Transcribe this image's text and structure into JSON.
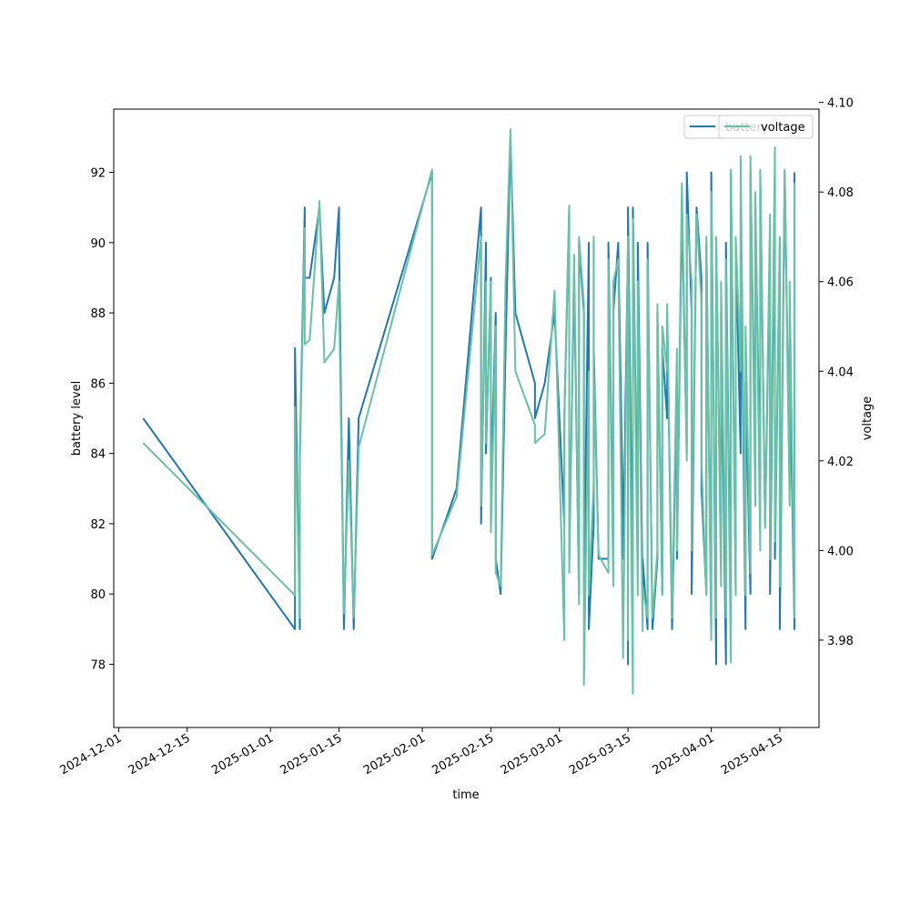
{
  "chart_data": {
    "type": "line",
    "xlabel": "time",
    "ylabel": "battery level",
    "y2label": "voltage",
    "x_range": [
      "2024-11-30",
      "2025-04-23"
    ],
    "ylim": [
      76.2,
      93.8
    ],
    "y2lim": [
      3.9605,
      4.0985
    ],
    "x_ticks": [
      "2024-12-01",
      "2024-12-15",
      "2025-01-01",
      "2025-01-15",
      "2025-02-01",
      "2025-02-15",
      "2025-03-01",
      "2025-03-15",
      "2025-04-01",
      "2025-04-15"
    ],
    "y_ticks": [
      78,
      80,
      82,
      84,
      86,
      88,
      90,
      92
    ],
    "y2_ticks": [
      "3.98",
      "4.00",
      "4.02",
      "4.04",
      "4.06",
      "4.08",
      "4.10"
    ],
    "grid": false,
    "legend_placement": "top-right",
    "series": [
      {
        "name": "battery",
        "axis": "left",
        "color": "#1f77b4",
        "x": [
          "2024-12-06",
          "2025-01-06",
          "2025-01-06",
          "2025-01-07",
          "2025-01-07",
          "2025-01-08",
          "2025-01-08",
          "2025-01-09",
          "2025-01-11",
          "2025-01-12",
          "2025-01-14",
          "2025-01-15",
          "2025-01-15",
          "2025-01-16",
          "2025-01-17",
          "2025-01-18",
          "2025-01-19",
          "2025-01-19",
          "2025-02-03",
          "2025-02-03",
          "2025-02-08",
          "2025-02-13",
          "2025-02-13",
          "2025-02-14",
          "2025-02-14",
          "2025-02-15",
          "2025-02-15",
          "2025-02-16",
          "2025-02-16",
          "2025-02-17",
          "2025-02-18",
          "2025-02-19",
          "2025-02-20",
          "2025-02-24",
          "2025-02-24",
          "2025-02-26",
          "2025-02-28",
          "2025-03-02",
          "2025-03-02",
          "2025-03-03",
          "2025-03-03",
          "2025-03-04",
          "2025-03-05",
          "2025-03-05",
          "2025-03-06",
          "2025-03-06",
          "2025-03-07",
          "2025-03-07",
          "2025-03-08",
          "2025-03-08",
          "2025-03-08",
          "2025-03-09",
          "2025-03-11",
          "2025-03-11",
          "2025-03-12",
          "2025-03-12",
          "2025-03-13",
          "2025-03-14",
          "2025-03-14",
          "2025-03-15",
          "2025-03-15",
          "2025-03-15",
          "2025-03-16",
          "2025-03-16",
          "2025-03-17",
          "2025-03-17",
          "2025-03-18",
          "2025-03-18",
          "2025-03-19",
          "2025-03-19",
          "2025-03-20",
          "2025-03-21",
          "2025-03-21",
          "2025-03-22",
          "2025-03-22",
          "2025-03-23",
          "2025-03-23",
          "2025-03-24",
          "2025-03-25",
          "2025-03-25",
          "2025-03-26",
          "2025-03-27",
          "2025-03-27",
          "2025-03-28",
          "2025-03-28",
          "2025-03-29",
          "2025-03-30",
          "2025-03-30",
          "2025-03-31",
          "2025-03-31",
          "2025-04-01",
          "2025-04-01",
          "2025-04-02",
          "2025-04-02",
          "2025-04-03",
          "2025-04-03",
          "2025-04-04",
          "2025-04-04",
          "2025-04-05",
          "2025-04-05",
          "2025-04-06",
          "2025-04-06",
          "2025-04-07",
          "2025-04-07",
          "2025-04-08",
          "2025-04-08",
          "2025-04-09",
          "2025-04-09",
          "2025-04-10",
          "2025-04-10",
          "2025-04-11",
          "2025-04-11",
          "2025-04-12",
          "2025-04-13",
          "2025-04-13",
          "2025-04-14",
          "2025-04-14",
          "2025-04-15",
          "2025-04-15",
          "2025-04-16",
          "2025-04-17",
          "2025-04-17",
          "2025-04-18",
          "2025-04-18"
        ],
        "y": [
          85,
          79,
          87,
          79,
          84,
          91,
          89,
          89,
          91,
          88,
          89,
          91,
          90,
          79,
          85,
          79,
          85,
          85,
          92,
          81,
          83,
          91,
          82,
          90,
          84,
          89,
          83,
          88,
          81,
          80,
          87,
          93,
          88,
          86,
          85,
          86,
          88,
          82,
          85,
          91,
          81,
          89,
          80,
          90,
          88,
          80,
          90,
          79,
          82,
          90,
          87,
          81,
          81,
          90,
          81,
          88,
          90,
          82,
          81,
          90,
          78,
          91,
          80,
          91,
          81,
          90,
          80,
          81,
          79,
          90,
          79,
          81,
          88,
          80,
          87,
          85,
          88,
          79,
          86,
          81,
          91,
          84,
          92,
          88,
          80,
          91,
          89,
          83,
          80,
          90,
          79,
          92,
          78,
          90,
          81,
          88,
          78,
          90,
          79,
          92,
          80,
          90,
          84,
          91,
          79,
          86,
          80,
          92,
          84,
          91,
          83,
          92,
          82,
          90,
          80,
          92,
          81,
          90,
          79,
          92,
          83,
          87,
          79,
          92
        ]
      },
      {
        "name": "voltage",
        "axis": "right",
        "color": "#66c2a5",
        "x": [
          "2024-12-06",
          "2025-01-06",
          "2025-01-06",
          "2025-01-07",
          "2025-01-07",
          "2025-01-08",
          "2025-01-08",
          "2025-01-09",
          "2025-01-11",
          "2025-01-12",
          "2025-01-14",
          "2025-01-15",
          "2025-01-15",
          "2025-01-16",
          "2025-01-17",
          "2025-01-18",
          "2025-01-19",
          "2025-01-19",
          "2025-02-03",
          "2025-02-03",
          "2025-02-08",
          "2025-02-13",
          "2025-02-13",
          "2025-02-14",
          "2025-02-14",
          "2025-02-15",
          "2025-02-15",
          "2025-02-16",
          "2025-02-16",
          "2025-02-17",
          "2025-02-18",
          "2025-02-19",
          "2025-02-20",
          "2025-02-24",
          "2025-02-24",
          "2025-02-26",
          "2025-02-28",
          "2025-03-02",
          "2025-03-02",
          "2025-03-03",
          "2025-03-03",
          "2025-03-04",
          "2025-03-05",
          "2025-03-05",
          "2025-03-06",
          "2025-03-06",
          "2025-03-07",
          "2025-03-07",
          "2025-03-08",
          "2025-03-08",
          "2025-03-08",
          "2025-03-09",
          "2025-03-11",
          "2025-03-11",
          "2025-03-12",
          "2025-03-12",
          "2025-03-13",
          "2025-03-14",
          "2025-03-14",
          "2025-03-15",
          "2025-03-15",
          "2025-03-15",
          "2025-03-16",
          "2025-03-16",
          "2025-03-17",
          "2025-03-17",
          "2025-03-18",
          "2025-03-18",
          "2025-03-19",
          "2025-03-19",
          "2025-03-20",
          "2025-03-21",
          "2025-03-21",
          "2025-03-22",
          "2025-03-22",
          "2025-03-23",
          "2025-03-23",
          "2025-03-24",
          "2025-03-25",
          "2025-03-25",
          "2025-03-26",
          "2025-03-27",
          "2025-03-27",
          "2025-03-28",
          "2025-03-28",
          "2025-03-29",
          "2025-03-30",
          "2025-03-30",
          "2025-03-31",
          "2025-03-31",
          "2025-04-01",
          "2025-04-01",
          "2025-04-02",
          "2025-04-02",
          "2025-04-03",
          "2025-04-03",
          "2025-04-04",
          "2025-04-04",
          "2025-04-05",
          "2025-04-05",
          "2025-04-06",
          "2025-04-06",
          "2025-04-07",
          "2025-04-07",
          "2025-04-08",
          "2025-04-08",
          "2025-04-09",
          "2025-04-09",
          "2025-04-10",
          "2025-04-10",
          "2025-04-11",
          "2025-04-11",
          "2025-04-12",
          "2025-04-13",
          "2025-04-13",
          "2025-04-14",
          "2025-04-14",
          "2025-04-15",
          "2025-04-15",
          "2025-04-16",
          "2025-04-17",
          "2025-04-17",
          "2025-04-18",
          "2025-04-18"
        ],
        "y": [
          4.024,
          3.99,
          4.032,
          3.985,
          4.02,
          4.072,
          4.046,
          4.047,
          4.078,
          4.042,
          4.045,
          4.06,
          4.056,
          3.986,
          4.02,
          3.985,
          4.022,
          4.023,
          4.085,
          3.999,
          4.012,
          4.07,
          4.01,
          4.06,
          4.024,
          4.06,
          4.004,
          4.05,
          3.995,
          3.992,
          4.06,
          4.094,
          4.04,
          4.028,
          4.024,
          4.026,
          4.058,
          3.98,
          4.03,
          4.077,
          3.995,
          4.066,
          3.988,
          4.07,
          4.055,
          3.97,
          4.04,
          3.99,
          4.015,
          4.07,
          4.04,
          3.999,
          3.995,
          4.065,
          3.992,
          4.06,
          4.065,
          3.976,
          3.978,
          4.07,
          3.98,
          4.07,
          3.968,
          4.074,
          3.99,
          4.06,
          3.982,
          3.992,
          3.985,
          4.065,
          3.985,
          4.0,
          4.055,
          3.99,
          4.05,
          4.04,
          4.055,
          3.985,
          4.045,
          4.0,
          4.082,
          4.02,
          4.075,
          4.06,
          4.0,
          4.075,
          4.055,
          4.02,
          3.99,
          4.07,
          3.98,
          4.08,
          3.985,
          4.07,
          3.992,
          4.06,
          3.985,
          4.065,
          3.975,
          4.085,
          3.99,
          4.07,
          4.04,
          4.088,
          3.99,
          4.05,
          3.995,
          4.088,
          4.01,
          4.08,
          4.0,
          4.085,
          4.005,
          4.075,
          3.998,
          4.09,
          4.002,
          4.07,
          3.992,
          4.085,
          4.01,
          4.06,
          3.985,
          4.082
        ]
      }
    ]
  }
}
